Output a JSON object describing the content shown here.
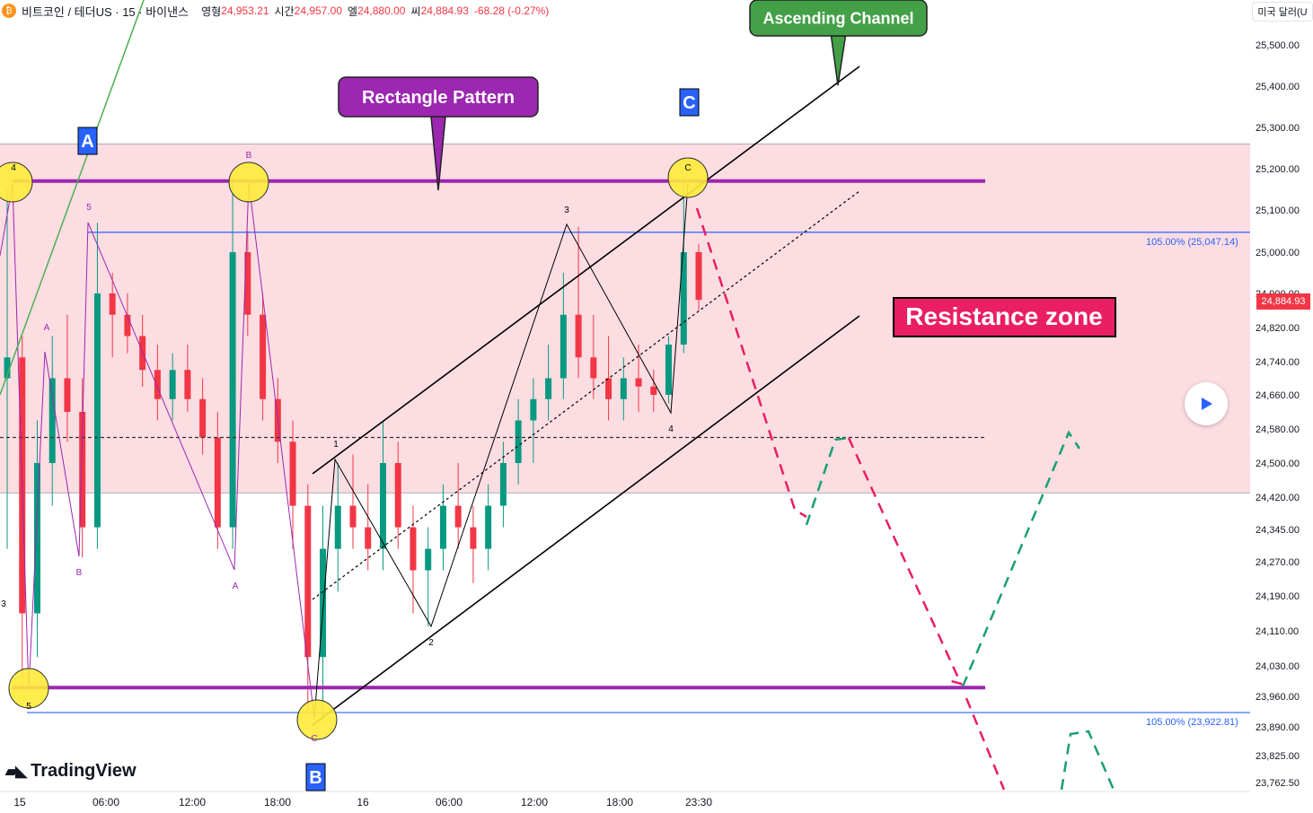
{
  "header": {
    "symbol": "비트코인 / 테더US · 15 · 바이낸스",
    "open_label": "영형",
    "open": "24,953.21",
    "high_label": "시간",
    "high": "24,957.00",
    "low_label": "엘",
    "low": "24,880.00",
    "close_label": "씨",
    "close": "24,884.93",
    "change": "-68.28 (-0.27%)"
  },
  "currency_button": "미국 달러(U",
  "last_price_tag": "24,884.93",
  "logo_text": "TradingView",
  "annotations": {
    "ascending_channel": "Ascending Channel",
    "rectangle_pattern": "Rectangle Pattern",
    "resistance_zone": "Resistance zone",
    "fib_upper": "105.00% (25,047.14)",
    "fib_lower": "105.00% (23,922.81)",
    "wave_A": "A",
    "wave_B": "B",
    "wave_C": "C"
  },
  "colors": {
    "up": "#089981",
    "down": "#f23645",
    "zone": "#fcdde2",
    "rectangle_line": "#9c27b0",
    "fib_line": "#2962ff",
    "bear_path": "#e91e63",
    "bull_path": "#1a9e73"
  },
  "chart_data": {
    "type": "candlestick",
    "y_axis_ticks": [
      "25,500.00",
      "25,400.00",
      "25,300.00",
      "25,200.00",
      "25,100.00",
      "25,000.00",
      "24,900.00",
      "24,820.00",
      "24,740.00",
      "24,660.00",
      "24,580.00",
      "24,500.00",
      "24,420.00",
      "24,345.00",
      "24,270.00",
      "24,190.00",
      "24,110.00",
      "24,030.00",
      "23,960.00",
      "23,890.00",
      "23,825.00",
      "23,762.50"
    ],
    "x_axis_ticks": [
      "15",
      "06:00",
      "12:00",
      "18:00",
      "16",
      "06:00",
      "12:00",
      "18:00",
      "23:30"
    ],
    "ylim": [
      23750,
      25560
    ],
    "resistance_zone": [
      24430,
      25260
    ],
    "rectangle_top": 25170,
    "rectangle_bottom": 23980,
    "fib_levels": [
      25047.14,
      23922.81
    ],
    "midline": 24560,
    "last_price": 24884.93,
    "wave_labels": [
      "4",
      "B",
      "C",
      "A",
      "B",
      "A",
      "5",
      "C",
      "1",
      "2",
      "3",
      "4",
      "5",
      "3"
    ],
    "candles_ohlc_approx": [
      [
        24700,
        25150,
        24300,
        24750
      ],
      [
        24750,
        24800,
        23980,
        24150
      ],
      [
        24150,
        24600,
        24050,
        24500
      ],
      [
        24500,
        24800,
        24400,
        24700
      ],
      [
        24700,
        24850,
        24550,
        24620
      ],
      [
        24620,
        24700,
        24280,
        24350
      ],
      [
        24350,
        25070,
        24300,
        24900
      ],
      [
        24900,
        24950,
        24750,
        24850
      ],
      [
        24850,
        24900,
        24760,
        24800
      ],
      [
        24800,
        24850,
        24680,
        24720
      ],
      [
        24720,
        24780,
        24600,
        24650
      ],
      [
        24650,
        24760,
        24600,
        24720
      ],
      [
        24720,
        24780,
        24620,
        24650
      ],
      [
        24650,
        24700,
        24520,
        24560
      ],
      [
        24560,
        24620,
        24300,
        24350
      ],
      [
        24350,
        25180,
        24300,
        25000
      ],
      [
        25000,
        25050,
        24800,
        24850
      ],
      [
        24850,
        24900,
        24600,
        24650
      ],
      [
        24650,
        24700,
        24500,
        24550
      ],
      [
        24550,
        24600,
        24300,
        24400
      ],
      [
        24400,
        24450,
        23920,
        24050
      ],
      [
        24050,
        24400,
        23900,
        24300
      ],
      [
        24300,
        24500,
        24200,
        24400
      ],
      [
        24400,
        24520,
        24300,
        24350
      ],
      [
        24350,
        24450,
        24250,
        24300
      ],
      [
        24300,
        24600,
        24250,
        24500
      ],
      [
        24500,
        24550,
        24300,
        24350
      ],
      [
        24350,
        24400,
        24150,
        24250
      ],
      [
        24250,
        24350,
        24120,
        24300
      ],
      [
        24300,
        24450,
        24250,
        24400
      ],
      [
        24400,
        24500,
        24300,
        24350
      ],
      [
        24350,
        24400,
        24220,
        24300
      ],
      [
        24300,
        24450,
        24250,
        24400
      ],
      [
        24400,
        24550,
        24350,
        24500
      ],
      [
        24500,
        24650,
        24450,
        24600
      ],
      [
        24600,
        24700,
        24500,
        24650
      ],
      [
        24650,
        24780,
        24600,
        24700
      ],
      [
        24700,
        24950,
        24650,
        24850
      ],
      [
        24850,
        25060,
        24700,
        24750
      ],
      [
        24750,
        24850,
        24650,
        24700
      ],
      [
        24700,
        24800,
        24600,
        24650
      ],
      [
        24650,
        24750,
        24600,
        24700
      ],
      [
        24700,
        24780,
        24620,
        24680
      ],
      [
        24680,
        24720,
        24620,
        24660
      ],
      [
        24660,
        24800,
        24640,
        24780
      ],
      [
        24780,
        25180,
        24760,
        25000
      ],
      [
        25000,
        25020,
        24860,
        24885
      ]
    ]
  }
}
